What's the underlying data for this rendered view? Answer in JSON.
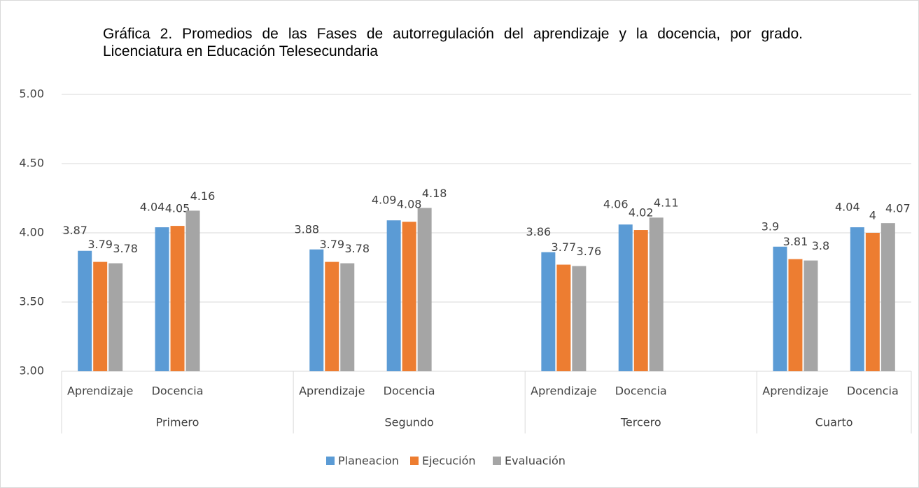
{
  "chart_data": {
    "type": "bar",
    "title": "Gráfica 2. Promedios de las Fases de autorregulación del aprendizaje y la docencia, por grado. Licenciatura en Educación Telesecundaria",
    "categories": [
      "Aprendizaje",
      "Docencia",
      null,
      "Aprendizaje",
      "Docencia",
      null,
      "Aprendizaje",
      "Docencia",
      null,
      "Aprendizaje",
      "Docencia"
    ],
    "groups": [
      "Primero",
      "Segundo",
      "Tercero",
      "Cuarto"
    ],
    "series": [
      {
        "name": "Planeacion",
        "color": "#5b9bd5",
        "values": [
          3.87,
          4.04,
          null,
          3.88,
          4.09,
          null,
          3.86,
          4.06,
          null,
          3.9,
          4.04
        ]
      },
      {
        "name": "Ejecución",
        "color": "#ed7d31",
        "values": [
          3.79,
          4.05,
          null,
          3.79,
          4.08,
          null,
          3.77,
          4.02,
          null,
          3.81,
          4
        ]
      },
      {
        "name": "Evaluación",
        "color": "#a5a5a5",
        "values": [
          3.78,
          4.16,
          null,
          3.78,
          4.18,
          null,
          3.76,
          4.11,
          null,
          3.8,
          4.07
        ]
      }
    ],
    "ylim": [
      3,
      5
    ],
    "yticks": [
      {
        "value": 3,
        "label": "3.00"
      },
      {
        "value": 3.5,
        "label": "3.50"
      },
      {
        "value": 4,
        "label": "4.00"
      },
      {
        "value": 4.5,
        "label": "4.50"
      },
      {
        "value": 5,
        "label": "5.00"
      }
    ],
    "grid": true,
    "legend": "bottom"
  }
}
